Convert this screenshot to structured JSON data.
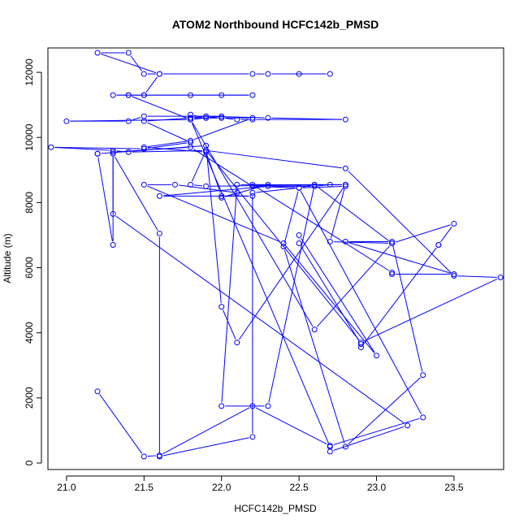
{
  "chart_data": {
    "type": "scatter",
    "title": "ATOM2 Northbound HCFC142b_PMSD",
    "xlabel": "HCFC142b_PMSD",
    "ylabel": "Altitude (m)",
    "xlim": [
      20.88,
      23.82
    ],
    "ylim": [
      -200,
      12750
    ],
    "xticks": [
      21.0,
      21.5,
      22.0,
      22.5,
      23.0,
      23.5
    ],
    "xtick_labels": [
      "21.0",
      "21.5",
      "22.0",
      "22.5",
      "23.0",
      "23.5"
    ],
    "yticks": [
      0,
      2000,
      4000,
      6000,
      8000,
      10000,
      12000
    ],
    "ytick_labels": [
      "0",
      "2000",
      "4000",
      "6000",
      "8000",
      "10000",
      "12000"
    ],
    "grid": false,
    "color": "#0000ff",
    "series": [
      {
        "style": "points-and-lines",
        "x": [
          21.2,
          21.5,
          21.6,
          22.2,
          22.7,
          23.3,
          22.5,
          22.2,
          21.8,
          21.3,
          21.3,
          21.2,
          21.2,
          21.9,
          22.0,
          22.1,
          22.8,
          22.7,
          23.1,
          22.6,
          21.8,
          22.7,
          22.7,
          23.2,
          21.3,
          21.3,
          21.6,
          21.6,
          22.2,
          22.2,
          22.5,
          22.6,
          23.1,
          23.5,
          23.4,
          23.4,
          22.9,
          22.9,
          22.5,
          22.5,
          23.0,
          22.4,
          21.5,
          21.7,
          22.1,
          22.0,
          22.3,
          22.1,
          22.0,
          22.3,
          22.6,
          22.8,
          21.9,
          21.8,
          21.9,
          22.8,
          23.5,
          23.8,
          22.9,
          21.9,
          21.4,
          21.3,
          20.9,
          21.5,
          21.8,
          21.5,
          21.8,
          21.9,
          22.3,
          22.8,
          22.2,
          22.1,
          22.0,
          21.9,
          21.8,
          21.8,
          21.0,
          21.4,
          21.5,
          22.0,
          21.8,
          21.4,
          21.5,
          21.8,
          22.0,
          22.2,
          21.3,
          21.4,
          21.5,
          21.6,
          21.5,
          21.4,
          21.2,
          21.6,
          22.2,
          22.3,
          22.7,
          22.5
        ],
        "y": [
          2200,
          200,
          230,
          1750,
          530,
          1400,
          8450,
          8500,
          9700,
          9550,
          6700,
          9500,
          9500,
          9750,
          4800,
          3700,
          8550,
          6800,
          6750,
          4100,
          10550,
          500,
          350,
          1150,
          7650,
          9500,
          7050,
          200,
          800,
          8300,
          8450,
          8550,
          6750,
          7350,
          6700,
          6700,
          3550,
          3650,
          6750,
          7000,
          3300,
          6750,
          8550,
          8550,
          8300,
          8150,
          8550,
          8550,
          1750,
          1750,
          8550,
          8550,
          8500,
          8550,
          9600,
          9050,
          5750,
          5700,
          3700,
          9600,
          9550,
          9600,
          9700,
          9650,
          9850,
          10500,
          10600,
          10650,
          10600,
          10550,
          10550,
          10550,
          10600,
          10600,
          10600,
          10550,
          10500,
          10500,
          10650,
          10650,
          10550,
          11300,
          11300,
          11300,
          11300,
          11300,
          11300,
          11300,
          11300,
          11950,
          11950,
          12600,
          12600,
          11950,
          11950,
          11950,
          11950,
          11950
        ]
      },
      {
        "style": "points-and-lines",
        "x": [
          21.8,
          21.9,
          22.0,
          22.2,
          21.8,
          21.5,
          21.9,
          22.0,
          22.2,
          21.6,
          22.3,
          22.6,
          22.7,
          22.2,
          23.1,
          23.1,
          23.5,
          22.8,
          23.1,
          23.3,
          22.8,
          22.4,
          22.5,
          22.8
        ],
        "y": [
          10700,
          10600,
          10600,
          10600,
          9900,
          9700,
          9550,
          8200,
          8200,
          8200,
          8500,
          8500,
          8550,
          8550,
          5850,
          5800,
          5800,
          6800,
          6800,
          2700,
          500,
          6650,
          8450,
          8500
        ]
      }
    ]
  }
}
